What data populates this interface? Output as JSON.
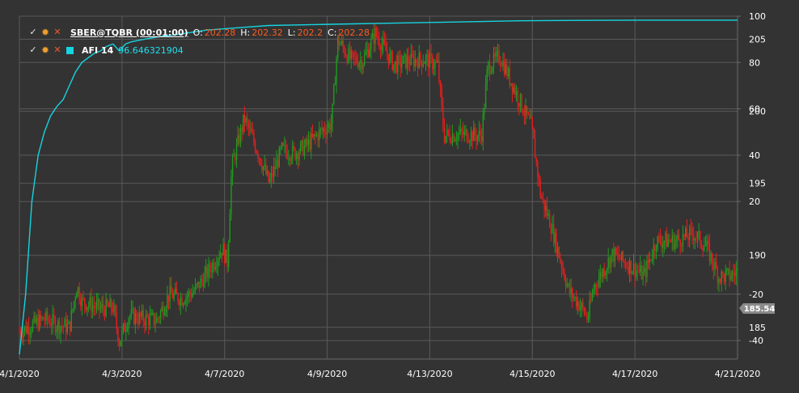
{
  "legend": {
    "main": {
      "symbol": "SBER@TQBR (00:01:00)",
      "o_label": "O:",
      "o_value": "202.28",
      "h_label": "H:",
      "h_value": "202.32",
      "l_label": "L:",
      "l_value": "202.2",
      "c_label": "C:",
      "c_value": "202.28"
    },
    "indicator": {
      "name": "AFI 14",
      "value": "96.646321904"
    },
    "icons": [
      "check-icon",
      "gear-icon",
      "close-icon",
      "color-square-icon"
    ]
  },
  "colors": {
    "background": "#333333",
    "grid": "#5a5a5a",
    "axis_text": "#ffffff",
    "candle_up": "#1f9a1f",
    "candle_down": "#e61e1e",
    "indicator_line": "#16d4e0",
    "price_badge": "#8a8a8a"
  },
  "current_price_label": "185.54",
  "chart_data": {
    "type": "candlestick",
    "x_ticks": [
      "4/1/2020",
      "4/3/2020",
      "4/7/2020",
      "4/9/2020",
      "4/13/2020",
      "4/15/2020",
      "4/17/2020",
      "4/21/2020"
    ],
    "price_axis": {
      "ticks": [
        "205",
        "200",
        "195",
        "190",
        "185"
      ],
      "range": [
        182.8,
        206.6
      ]
    },
    "indicator_axis": {
      "ticks": [
        "100",
        "80",
        "60",
        "40",
        "20",
        "-20",
        "-40"
      ],
      "range": [
        -48,
        100
      ]
    },
    "price_path": [
      [
        0,
        184.7
      ],
      [
        0.04,
        185.6
      ],
      [
        0.06,
        185.2
      ],
      [
        0.08,
        185.0
      ],
      [
        0.092,
        187.9
      ],
      [
        0.1,
        186.8
      ],
      [
        0.13,
        186.3
      ],
      [
        0.15,
        186.4
      ],
      [
        0.16,
        184.0
      ],
      [
        0.175,
        185.8
      ],
      [
        0.2,
        185.6
      ],
      [
        0.22,
        185.5
      ],
      [
        0.24,
        187.3
      ],
      [
        0.26,
        187.0
      ],
      [
        0.28,
        187.5
      ],
      [
        0.3,
        188.7
      ],
      [
        0.325,
        190.5
      ],
      [
        0.333,
        189.5
      ],
      [
        0.34,
        196.1
      ],
      [
        0.36,
        199.5
      ],
      [
        0.38,
        197.4
      ],
      [
        0.4,
        195.0
      ],
      [
        0.42,
        197.3
      ],
      [
        0.44,
        197.1
      ],
      [
        0.46,
        197.6
      ],
      [
        0.48,
        198.5
      ],
      [
        0.5,
        199.2
      ],
      [
        0.51,
        205.0
      ],
      [
        0.53,
        203.6
      ],
      [
        0.55,
        203.5
      ],
      [
        0.57,
        205.4
      ],
      [
        0.6,
        203.2
      ],
      [
        0.62,
        203.5
      ],
      [
        0.65,
        203.6
      ],
      [
        0.67,
        203.2
      ],
      [
        0.68,
        198.3
      ],
      [
        0.7,
        198.4
      ],
      [
        0.72,
        198.4
      ],
      [
        0.74,
        198.3
      ],
      [
        0.75,
        203.1
      ],
      [
        0.77,
        203.8
      ],
      [
        0.79,
        201.8
      ],
      [
        0.82,
        198.9
      ],
      [
        0.835,
        194.1
      ],
      [
        0.85,
        192.3
      ],
      [
        0.88,
        187.5
      ],
      [
        0.9,
        186.4
      ],
      [
        0.91,
        185.6
      ],
      [
        0.92,
        187.8
      ],
      [
        0.95,
        190.1
      ],
      [
        0.98,
        189.2
      ],
      [
        1.0,
        188.6
      ],
      [
        1.02,
        191.0
      ],
      [
        1.05,
        191.0
      ],
      [
        1.08,
        191.5
      ],
      [
        1.1,
        190.6
      ],
      [
        1.12,
        188.5
      ],
      [
        1.14,
        188.6
      ],
      [
        1.15,
        188.9
      ]
    ],
    "indicator_path": [
      [
        0,
        -46
      ],
      [
        0.01,
        -20
      ],
      [
        0.02,
        20
      ],
      [
        0.03,
        40
      ],
      [
        0.04,
        50
      ],
      [
        0.05,
        57
      ],
      [
        0.06,
        61
      ],
      [
        0.07,
        64
      ],
      [
        0.08,
        70
      ],
      [
        0.09,
        76
      ],
      [
        0.1,
        80
      ],
      [
        0.11,
        82
      ],
      [
        0.12,
        84
      ],
      [
        0.13,
        85
      ],
      [
        0.14,
        87
      ],
      [
        0.15,
        88
      ],
      [
        0.16,
        85
      ],
      [
        0.17,
        88
      ],
      [
        0.18,
        89
      ],
      [
        0.2,
        90
      ],
      [
        0.22,
        91
      ],
      [
        0.25,
        92
      ],
      [
        0.3,
        94
      ],
      [
        0.35,
        95
      ],
      [
        0.4,
        96
      ],
      [
        0.5,
        96.5
      ],
      [
        0.6,
        97
      ],
      [
        0.7,
        97.5
      ],
      [
        0.8,
        98
      ],
      [
        0.9,
        98.2
      ],
      [
        1.0,
        98.3
      ],
      [
        1.15,
        98.3
      ]
    ]
  }
}
